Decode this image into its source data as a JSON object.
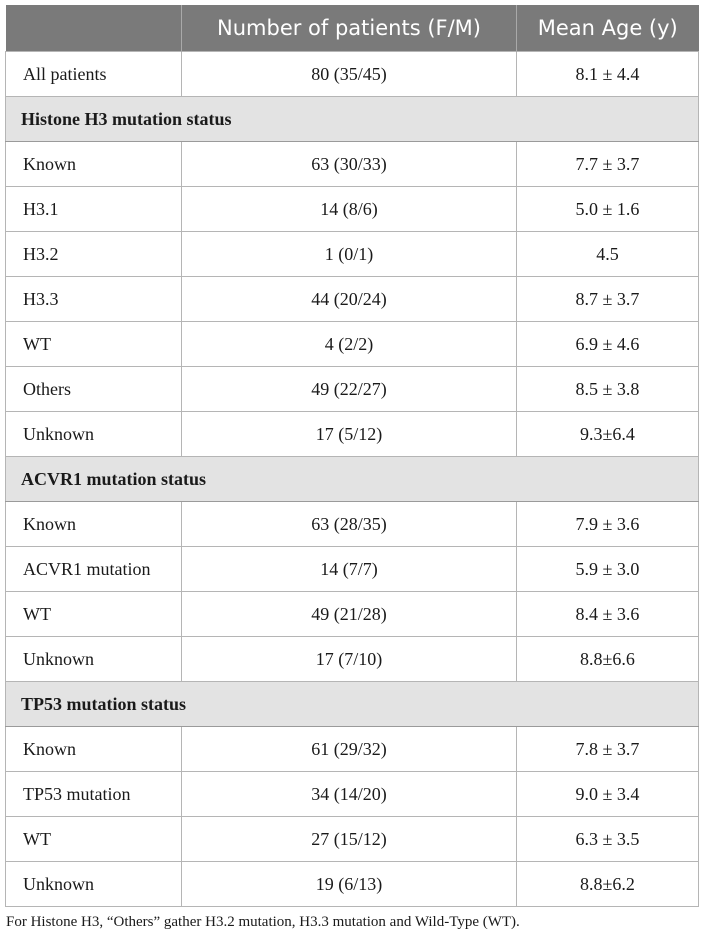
{
  "header": {
    "col1": "",
    "col2": "Number of patients (F/M)",
    "col3": "Mean Age (y)"
  },
  "rows": {
    "all": {
      "label": "All patients",
      "n": "80 (35/45)",
      "age": "8.1 ± 4.4"
    },
    "h3_section": "Histone H3 mutation status",
    "h3": [
      {
        "label": "Known",
        "n": "63 (30/33)",
        "age": "7.7 ± 3.7"
      },
      {
        "label": "H3.1",
        "n": "14 (8/6)",
        "age": "5.0 ± 1.6"
      },
      {
        "label": "H3.2",
        "n": "1 (0/1)",
        "age": "4.5"
      },
      {
        "label": "H3.3",
        "n": "44 (20/24)",
        "age": "8.7 ± 3.7"
      },
      {
        "label": "WT",
        "n": "4 (2/2)",
        "age": "6.9 ± 4.6"
      },
      {
        "label": "Others",
        "n": "49 (22/27)",
        "age": "8.5 ± 3.8"
      },
      {
        "label": "Unknown",
        "n": "17 (5/12)",
        "age": "9.3±6.4"
      }
    ],
    "acvr1_section": "ACVR1 mutation status",
    "acvr1": [
      {
        "label": "Known",
        "n": "63 (28/35)",
        "age": "7.9 ± 3.6"
      },
      {
        "label": "ACVR1 mutation",
        "n": "14 (7/7)",
        "age": "5.9 ± 3.0"
      },
      {
        "label": "WT",
        "n": "49 (21/28)",
        "age": "8.4 ± 3.6"
      },
      {
        "label": "Unknown",
        "n": "17 (7/10)",
        "age": "8.8±6.6"
      }
    ],
    "tp53_section": "TP53 mutation status",
    "tp53": [
      {
        "label": "Known",
        "n": "61 (29/32)",
        "age": "7.8 ± 3.7"
      },
      {
        "label": "TP53 mutation",
        "n": "34 (14/20)",
        "age": "9.0 ± 3.4"
      },
      {
        "label": "WT",
        "n": "27 (15/12)",
        "age": "6.3 ± 3.5"
      },
      {
        "label": "Unknown",
        "n": "19 (6/13)",
        "age": "8.8±6.2"
      }
    ]
  },
  "footnote": "For Histone H3, “Others” gather H3.2 mutation, H3.3 mutation and Wild-Type (WT).",
  "colors": {
    "header_bg": "#7a7a7a",
    "section_bg": "#e3e3e3"
  }
}
